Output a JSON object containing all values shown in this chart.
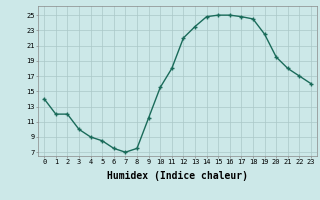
{
  "x": [
    0,
    1,
    2,
    3,
    4,
    5,
    6,
    7,
    8,
    9,
    10,
    11,
    12,
    13,
    14,
    15,
    16,
    17,
    18,
    19,
    20,
    21,
    22,
    23
  ],
  "y": [
    14,
    12,
    12,
    10,
    9,
    8.5,
    7.5,
    7,
    7.5,
    11.5,
    15.5,
    18,
    22,
    23.5,
    24.8,
    25,
    25,
    24.8,
    24.5,
    22.5,
    19.5,
    18,
    17,
    16
  ],
  "line_color": "#1a6b5a",
  "marker": "+",
  "marker_size": 3.5,
  "marker_linewidth": 1.0,
  "bg_color": "#cce8e8",
  "grid_color": "#aac8c8",
  "xlabel": "Humidex (Indice chaleur)",
  "xlabel_fontsize": 7,
  "tick_fontsize": 5,
  "ylabel_ticks": [
    7,
    9,
    11,
    13,
    15,
    17,
    19,
    21,
    23,
    25
  ],
  "xlim": [
    -0.5,
    23.5
  ],
  "ylim": [
    6.5,
    26.2
  ],
  "xtick_labels": [
    "0",
    "1",
    "2",
    "3",
    "4",
    "5",
    "6",
    "7",
    "8",
    "9",
    "10",
    "11",
    "12",
    "13",
    "14",
    "15",
    "16",
    "17",
    "18",
    "19",
    "20",
    "21",
    "22",
    "23"
  ],
  "linewidth": 1.0
}
